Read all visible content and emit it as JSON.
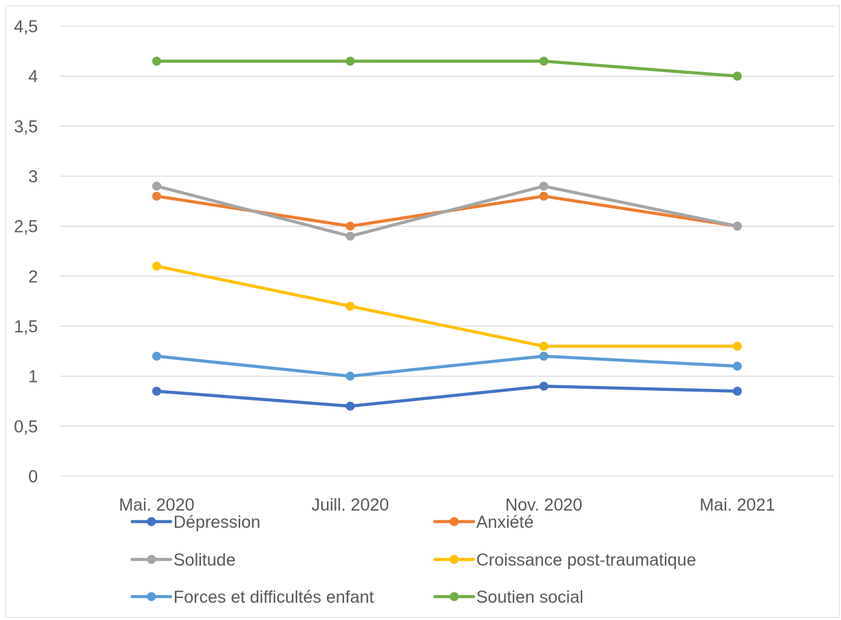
{
  "chart_data": {
    "type": "line",
    "title": "",
    "xlabel": "",
    "ylabel": "",
    "categories": [
      "Mai. 2020",
      "Juill. 2020",
      "Nov. 2020",
      "Mai.  2021"
    ],
    "ylim": [
      0,
      4.5
    ],
    "yticks": [
      0,
      0.5,
      1,
      1.5,
      2,
      2.5,
      3,
      3.5,
      4,
      4.5
    ],
    "ytick_labels": [
      "0",
      "0,5",
      "1",
      "1,5",
      "2",
      "2,5",
      "3",
      "3,5",
      "4",
      "4,5"
    ],
    "grid": true,
    "legend_position": "bottom",
    "series": [
      {
        "name": "Dépression",
        "color": "#4472c4",
        "values": [
          0.85,
          0.7,
          0.9,
          0.85
        ]
      },
      {
        "name": "Anxiété",
        "color": "#ed7d31",
        "values": [
          2.8,
          2.5,
          2.8,
          2.5
        ]
      },
      {
        "name": "Solitude",
        "color": "#a5a5a5",
        "values": [
          2.9,
          2.4,
          2.9,
          2.5
        ]
      },
      {
        "name": "Croissance post-traumatique",
        "color": "#ffc000",
        "values": [
          2.1,
          1.7,
          1.3,
          1.3
        ]
      },
      {
        "name": "Forces et difficultés enfant",
        "color": "#5b9bd5",
        "values": [
          1.2,
          1.0,
          1.2,
          1.1
        ]
      },
      {
        "name": "Soutien social",
        "color": "#70ad47",
        "values": [
          4.15,
          4.15,
          4.15,
          4.0
        ]
      }
    ]
  }
}
